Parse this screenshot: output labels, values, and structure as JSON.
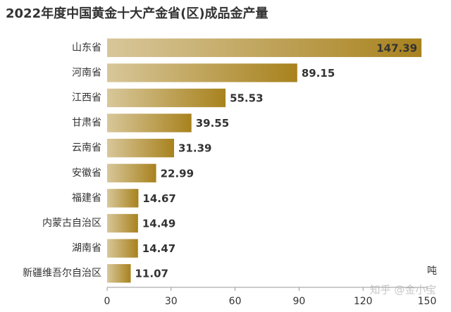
{
  "chart_data": {
    "type": "bar",
    "orientation": "horizontal",
    "title": "2022年度中国黄金十大产金省(区)成品金产量",
    "categories": [
      "山东省",
      "河南省",
      "江西省",
      "甘肃省",
      "云南省",
      "安徽省",
      "福建省",
      "内蒙古自治区",
      "湖南省",
      "新疆维吾尔自治区"
    ],
    "values": [
      147.39,
      89.15,
      55.53,
      39.55,
      31.39,
      22.99,
      14.67,
      14.49,
      14.47,
      11.07
    ],
    "color": "#a8821e",
    "xlim": [
      0,
      150
    ],
    "xticks": [
      0,
      30,
      60,
      90,
      120,
      150
    ],
    "x_unit": "吨",
    "watermark": "知乎 @金小宝"
  }
}
